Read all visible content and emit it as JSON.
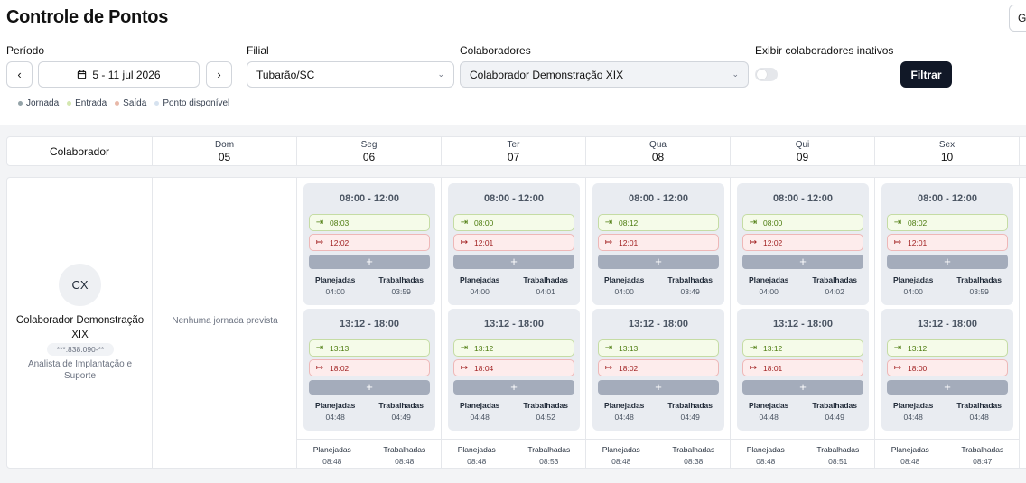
{
  "title": "Controle de Pontos",
  "top_right_button": "G",
  "filters": {
    "periodo_label": "Período",
    "date_range": "5 - 11 jul 2026",
    "filial_label": "Filial",
    "filial_value": "Tubarão/SC",
    "colaboradores_label": "Colaboradores",
    "colaboradores_value": "Colaborador Demonstração XIX",
    "inativos_label": "Exibir colaboradores inativos",
    "filtrar_label": "Filtrar"
  },
  "legend": [
    {
      "label": "Jornada",
      "color": "#94a3a8"
    },
    {
      "label": "Entrada",
      "color": "#d4e7b0"
    },
    {
      "label": "Saída",
      "color": "#e8b8a8"
    },
    {
      "label": "Ponto disponível",
      "color": "#d6e2ef"
    }
  ],
  "header": {
    "colaborador_label": "Colaborador",
    "days": [
      {
        "name": "Dom",
        "num": "05"
      },
      {
        "name": "Seg",
        "num": "06"
      },
      {
        "name": "Ter",
        "num": "07"
      },
      {
        "name": "Qua",
        "num": "08"
      },
      {
        "name": "Qui",
        "num": "09"
      },
      {
        "name": "Sex",
        "num": "10"
      }
    ]
  },
  "employee": {
    "initials": "CX",
    "name": "Colaborador Demonstração XIX",
    "cpf": "***.838.090-**",
    "role": "Analista de Implantação e Suporte"
  },
  "no_jornada": "Nenhuma jornada prevista",
  "labels": {
    "planejadas": "Planejadas",
    "trabalhadas": "Trabalhadas",
    "add": "+"
  },
  "week": [
    {
      "shifts": [
        {
          "range": "08:00 - 12:00",
          "in": "08:03",
          "out": "12:02",
          "planned": "04:00",
          "worked": "03:59"
        },
        {
          "range": "13:12 - 18:00",
          "in": "13:13",
          "out": "18:02",
          "planned": "04:48",
          "worked": "04:49"
        }
      ],
      "total_planned": "08:48",
      "total_worked": "08:48"
    },
    {
      "shifts": [
        {
          "range": "08:00 - 12:00",
          "in": "08:00",
          "out": "12:01",
          "planned": "04:00",
          "worked": "04:01"
        },
        {
          "range": "13:12 - 18:00",
          "in": "13:12",
          "out": "18:04",
          "planned": "04:48",
          "worked": "04:52"
        }
      ],
      "total_planned": "08:48",
      "total_worked": "08:53"
    },
    {
      "shifts": [
        {
          "range": "08:00 - 12:00",
          "in": "08:12",
          "out": "12:01",
          "planned": "04:00",
          "worked": "03:49"
        },
        {
          "range": "13:12 - 18:00",
          "in": "13:13",
          "out": "18:02",
          "planned": "04:48",
          "worked": "04:49"
        }
      ],
      "total_planned": "08:48",
      "total_worked": "08:38"
    },
    {
      "shifts": [
        {
          "range": "08:00 - 12:00",
          "in": "08:00",
          "out": "12:02",
          "planned": "04:00",
          "worked": "04:02"
        },
        {
          "range": "13:12 - 18:00",
          "in": "13:12",
          "out": "18:01",
          "planned": "04:48",
          "worked": "04:49"
        }
      ],
      "total_planned": "08:48",
      "total_worked": "08:51"
    },
    {
      "shifts": [
        {
          "range": "08:00 - 12:00",
          "in": "08:02",
          "out": "12:01",
          "planned": "04:00",
          "worked": "03:59"
        },
        {
          "range": "13:12 - 18:00",
          "in": "13:12",
          "out": "18:00",
          "planned": "04:48",
          "worked": "04:48"
        }
      ],
      "total_planned": "08:48",
      "total_worked": "08:47"
    }
  ]
}
